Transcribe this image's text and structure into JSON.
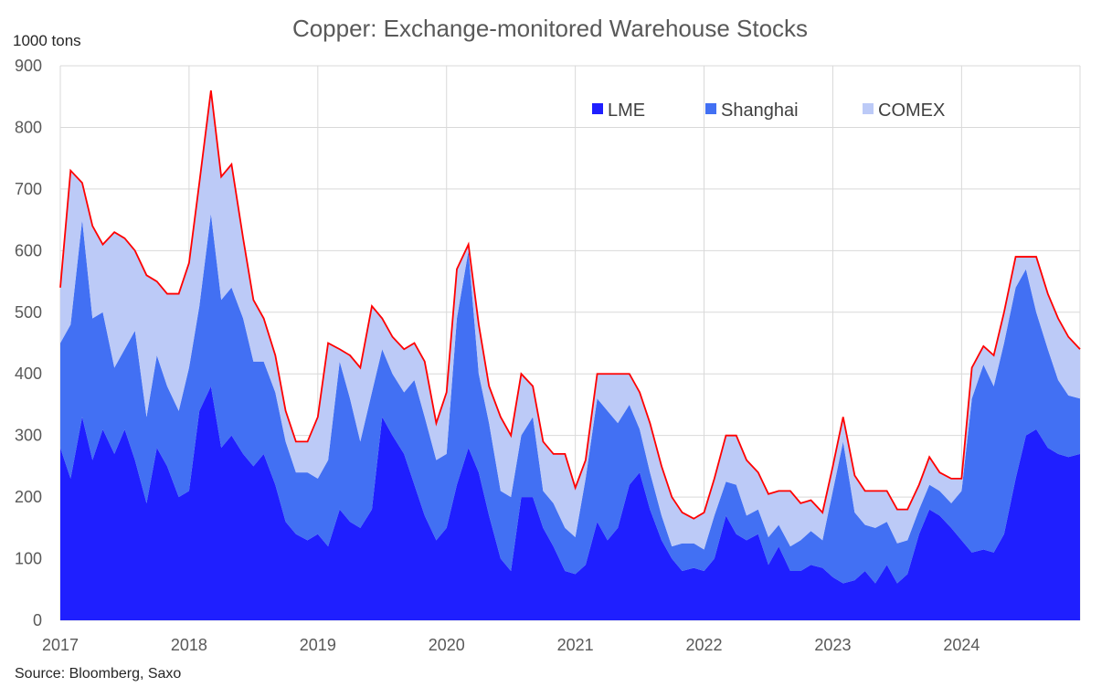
{
  "chart_data": {
    "type": "area",
    "stacked": true,
    "title": "Copper: Exchange-monitored Warehouse Stocks",
    "unit_label": "1000 tons",
    "source": "Source: Bloomberg, Saxo",
    "ylim": [
      0,
      900
    ],
    "yticks": [
      0,
      100,
      200,
      300,
      400,
      500,
      600,
      700,
      800,
      900
    ],
    "xlim": [
      2017.0,
      2024.92
    ],
    "xticks": [
      "2017",
      "2018",
      "2019",
      "2020",
      "2021",
      "2022",
      "2023",
      "2024"
    ],
    "grid": true,
    "legend_position": "top-right",
    "total_line_color": "#ff0000",
    "x": [
      2017.0,
      2017.08,
      2017.17,
      2017.25,
      2017.33,
      2017.42,
      2017.5,
      2017.58,
      2017.67,
      2017.75,
      2017.83,
      2017.92,
      2018.0,
      2018.08,
      2018.17,
      2018.25,
      2018.33,
      2018.42,
      2018.5,
      2018.58,
      2018.67,
      2018.75,
      2018.83,
      2018.92,
      2019.0,
      2019.08,
      2019.17,
      2019.25,
      2019.33,
      2019.42,
      2019.5,
      2019.58,
      2019.67,
      2019.75,
      2019.83,
      2019.92,
      2020.0,
      2020.08,
      2020.17,
      2020.25,
      2020.33,
      2020.42,
      2020.5,
      2020.58,
      2020.67,
      2020.75,
      2020.83,
      2020.92,
      2021.0,
      2021.08,
      2021.17,
      2021.25,
      2021.33,
      2021.42,
      2021.5,
      2021.58,
      2021.67,
      2021.75,
      2021.83,
      2021.92,
      2022.0,
      2022.08,
      2022.17,
      2022.25,
      2022.33,
      2022.42,
      2022.5,
      2022.58,
      2022.67,
      2022.75,
      2022.83,
      2022.92,
      2023.0,
      2023.08,
      2023.17,
      2023.25,
      2023.33,
      2023.42,
      2023.5,
      2023.58,
      2023.67,
      2023.75,
      2023.83,
      2023.92,
      2024.0,
      2024.08,
      2024.17,
      2024.25,
      2024.33,
      2024.42,
      2024.5,
      2024.58,
      2024.67,
      2024.75,
      2024.83,
      2024.92
    ],
    "series": [
      {
        "name": "LME",
        "color": "#1f1fff",
        "values": [
          280,
          230,
          330,
          260,
          310,
          270,
          310,
          260,
          190,
          280,
          250,
          200,
          210,
          340,
          380,
          280,
          300,
          270,
          250,
          270,
          220,
          160,
          140,
          130,
          140,
          120,
          180,
          160,
          150,
          180,
          330,
          300,
          270,
          220,
          170,
          130,
          150,
          220,
          280,
          240,
          170,
          100,
          80,
          200,
          200,
          150,
          120,
          80,
          75,
          90,
          160,
          130,
          150,
          220,
          240,
          180,
          130,
          100,
          80,
          85,
          80,
          100,
          170,
          140,
          130,
          140,
          90,
          120,
          80,
          80,
          90,
          85,
          70,
          60,
          65,
          80,
          60,
          90,
          60,
          75,
          140,
          180,
          170,
          150,
          130,
          110,
          115,
          110,
          140,
          230,
          300,
          310,
          280,
          270,
          265,
          270
        ]
      },
      {
        "name": "Shanghai",
        "color": "#4270f3",
        "values": [
          170,
          250,
          320,
          230,
          190,
          140,
          130,
          210,
          140,
          150,
          130,
          140,
          200,
          170,
          280,
          240,
          240,
          220,
          170,
          150,
          150,
          130,
          100,
          110,
          90,
          140,
          240,
          200,
          140,
          190,
          110,
          100,
          100,
          170,
          160,
          130,
          120,
          270,
          320,
          160,
          150,
          110,
          120,
          100,
          130,
          60,
          70,
          70,
          60,
          140,
          200,
          210,
          170,
          130,
          70,
          60,
          40,
          20,
          45,
          40,
          35,
          70,
          55,
          80,
          40,
          40,
          45,
          35,
          40,
          50,
          55,
          45,
          140,
          230,
          110,
          75,
          90,
          70,
          65,
          55,
          40,
          40,
          40,
          40,
          80,
          250,
          300,
          270,
          310,
          310,
          270,
          190,
          160,
          120,
          100,
          90
        ]
      },
      {
        "name": "COMEX",
        "color": "#bccaf7",
        "values": [
          90,
          250,
          60,
          150,
          110,
          220,
          180,
          130,
          230,
          120,
          150,
          190,
          170,
          200,
          200,
          200,
          200,
          130,
          100,
          70,
          60,
          50,
          50,
          50,
          100,
          190,
          20,
          70,
          120,
          140,
          50,
          60,
          70,
          60,
          90,
          60,
          100,
          80,
          10,
          80,
          60,
          120,
          100,
          100,
          50,
          80,
          80,
          120,
          80,
          30,
          40,
          60,
          80,
          50,
          60,
          80,
          80,
          80,
          50,
          40,
          60,
          60,
          75,
          80,
          90,
          60,
          70,
          55,
          90,
          60,
          50,
          45,
          40,
          40,
          60,
          55,
          60,
          50,
          55,
          50,
          40,
          45,
          30,
          40,
          20,
          50,
          30,
          50,
          50,
          50,
          20,
          90,
          90,
          100,
          95,
          80
        ]
      }
    ]
  }
}
